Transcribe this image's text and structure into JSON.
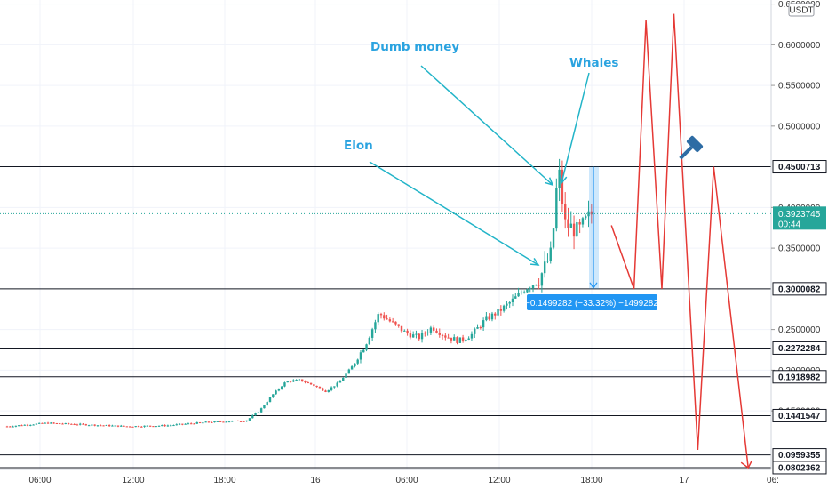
{
  "chart_data": {
    "type": "candlestick",
    "currency": "USDT",
    "price_axis": {
      "min": 0.078,
      "max": 0.655,
      "scale": "linear",
      "position": "right"
    },
    "y_ticks": [
      "0.6500000",
      "0.6000000",
      "0.5500000",
      "0.5000000",
      "0.4000000",
      "0.3500000",
      "0.2500000",
      "0.2000000",
      "0.1500000"
    ],
    "x_ticks": [
      "06:00",
      "12:00",
      "18:00",
      "16",
      "06:00",
      "12:00",
      "18:00",
      "17",
      "06:"
    ],
    "horizontal_levels": [
      "0.4500713",
      "0.3000082",
      "0.2272284",
      "0.1918982",
      "0.1441547",
      "0.0959355",
      "0.0802362"
    ],
    "current_price": {
      "value": "0.3923745",
      "countdown": "00:44",
      "color": "#26a69a"
    },
    "annotations": [
      "Dumb money",
      "Whales",
      "Elon"
    ],
    "measure_label": "−0.1499282 (−33.32%) −1499282",
    "projection_path": [
      {
        "t": 45.5,
        "p": 0.378
      },
      {
        "t": 47.2,
        "p": 0.3
      },
      {
        "t": 48.1,
        "p": 0.63
      },
      {
        "t": 49.3,
        "p": 0.3
      },
      {
        "t": 50.2,
        "p": 0.638
      },
      {
        "t": 52.0,
        "p": 0.102
      },
      {
        "t": 53.2,
        "p": 0.45
      },
      {
        "t": 55.8,
        "p": 0.08
      }
    ],
    "candles_summary": [
      {
        "t": 0,
        "p": 0.131
      },
      {
        "t": 3,
        "p": 0.135
      },
      {
        "t": 6,
        "p": 0.133
      },
      {
        "t": 9,
        "p": 0.131
      },
      {
        "t": 12,
        "p": 0.132
      },
      {
        "t": 15,
        "p": 0.136
      },
      {
        "t": 18,
        "p": 0.138
      },
      {
        "t": 19,
        "p": 0.15
      },
      {
        "t": 20,
        "p": 0.17
      },
      {
        "t": 21,
        "p": 0.186
      },
      {
        "t": 22,
        "p": 0.188
      },
      {
        "t": 23,
        "p": 0.182
      },
      {
        "t": 24,
        "p": 0.174
      },
      {
        "t": 25,
        "p": 0.185
      },
      {
        "t": 26,
        "p": 0.205
      },
      {
        "t": 27,
        "p": 0.232
      },
      {
        "t": 28,
        "p": 0.27
      },
      {
        "t": 29,
        "p": 0.258
      },
      {
        "t": 30,
        "p": 0.246
      },
      {
        "t": 31,
        "p": 0.24
      },
      {
        "t": 32,
        "p": 0.253
      },
      {
        "t": 33,
        "p": 0.242
      },
      {
        "t": 34,
        "p": 0.236
      },
      {
        "t": 35,
        "p": 0.244
      },
      {
        "t": 36,
        "p": 0.262
      },
      {
        "t": 37,
        "p": 0.272
      },
      {
        "t": 38,
        "p": 0.285
      },
      {
        "t": 39,
        "p": 0.3
      },
      {
        "t": 40,
        "p": 0.31
      },
      {
        "t": 41,
        "p": 0.345
      },
      {
        "t": 41.5,
        "p": 0.45
      },
      {
        "t": 42,
        "p": 0.38
      },
      {
        "t": 43,
        "p": 0.37
      },
      {
        "t": 44,
        "p": 0.392
      }
    ],
    "grid": true,
    "colors": {
      "up": "#26a69a",
      "down": "#ef5350",
      "projection": "#e53935",
      "annotation": "#2aa3e0",
      "arrow": "#22b4c8",
      "measure": "#2196f3"
    }
  }
}
